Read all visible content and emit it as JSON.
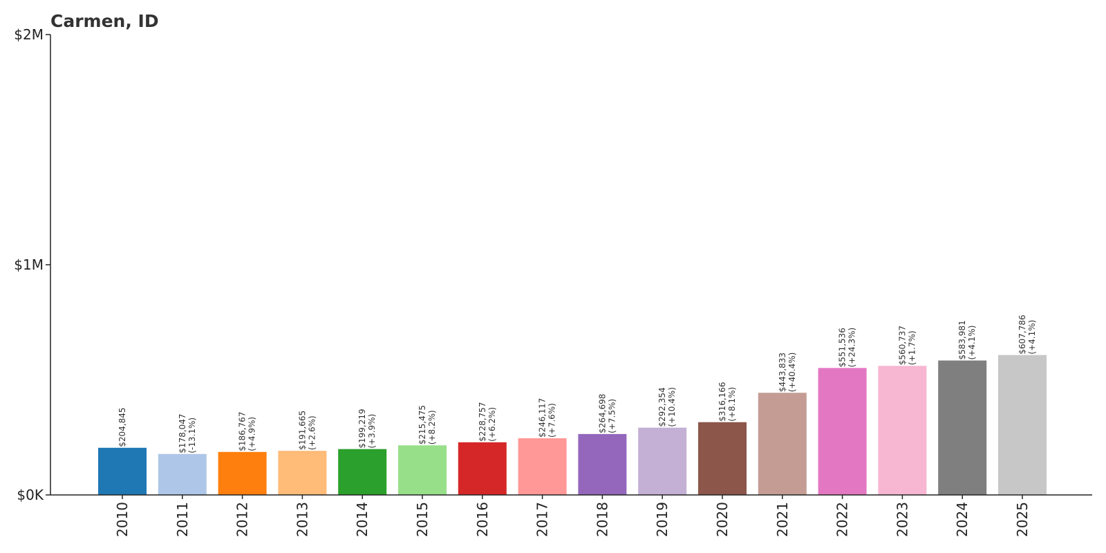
{
  "chart_data": {
    "type": "bar",
    "title": "Carmen, ID",
    "xlabel": "",
    "ylabel": "",
    "ylim": [
      0,
      2000000
    ],
    "yticks": [
      {
        "value": 0,
        "label": "$0K"
      },
      {
        "value": 1000000,
        "label": "$1M"
      },
      {
        "value": 2000000,
        "label": "$2M"
      }
    ],
    "grid": false,
    "legend": "none",
    "categories": [
      "2010",
      "2011",
      "2012",
      "2013",
      "2014",
      "2015",
      "2016",
      "2017",
      "2018",
      "2019",
      "2020",
      "2021",
      "2022",
      "2023",
      "2024",
      "2025"
    ],
    "values": [
      204845,
      178047,
      186767,
      191665,
      199219,
      215475,
      228757,
      246117,
      264698,
      292354,
      316166,
      443833,
      551536,
      560737,
      583981,
      607786
    ],
    "value_labels": [
      "$204,845",
      "$178,047",
      "$186,767",
      "$191,665",
      "$199,219",
      "$215,475",
      "$228,757",
      "$246,117",
      "$264,698",
      "$292,354",
      "$316,166",
      "$443,833",
      "$551,536",
      "$560,737",
      "$583,981",
      "$607,786"
    ],
    "change_labels": [
      "",
      "(-13.1%)",
      "(+4.9%)",
      "(+2.6%)",
      "(+3.9%)",
      "(+8.2%)",
      "(+6.2%)",
      "(+7.6%)",
      "(+7.5%)",
      "(+10.4%)",
      "(+8.1%)",
      "(+40.4%)",
      "(+24.3%)",
      "(+1.7%)",
      "(+4.1%)",
      "(+4.1%)"
    ],
    "colors": [
      "#1f77b4",
      "#aec7e8",
      "#ff7f0e",
      "#ffbb78",
      "#2ca02c",
      "#98df8a",
      "#d62728",
      "#ff9896",
      "#9467bd",
      "#c5b0d5",
      "#8c564b",
      "#c49c94",
      "#e377c2",
      "#f7b6d2",
      "#7f7f7f",
      "#c7c7c7"
    ]
  }
}
